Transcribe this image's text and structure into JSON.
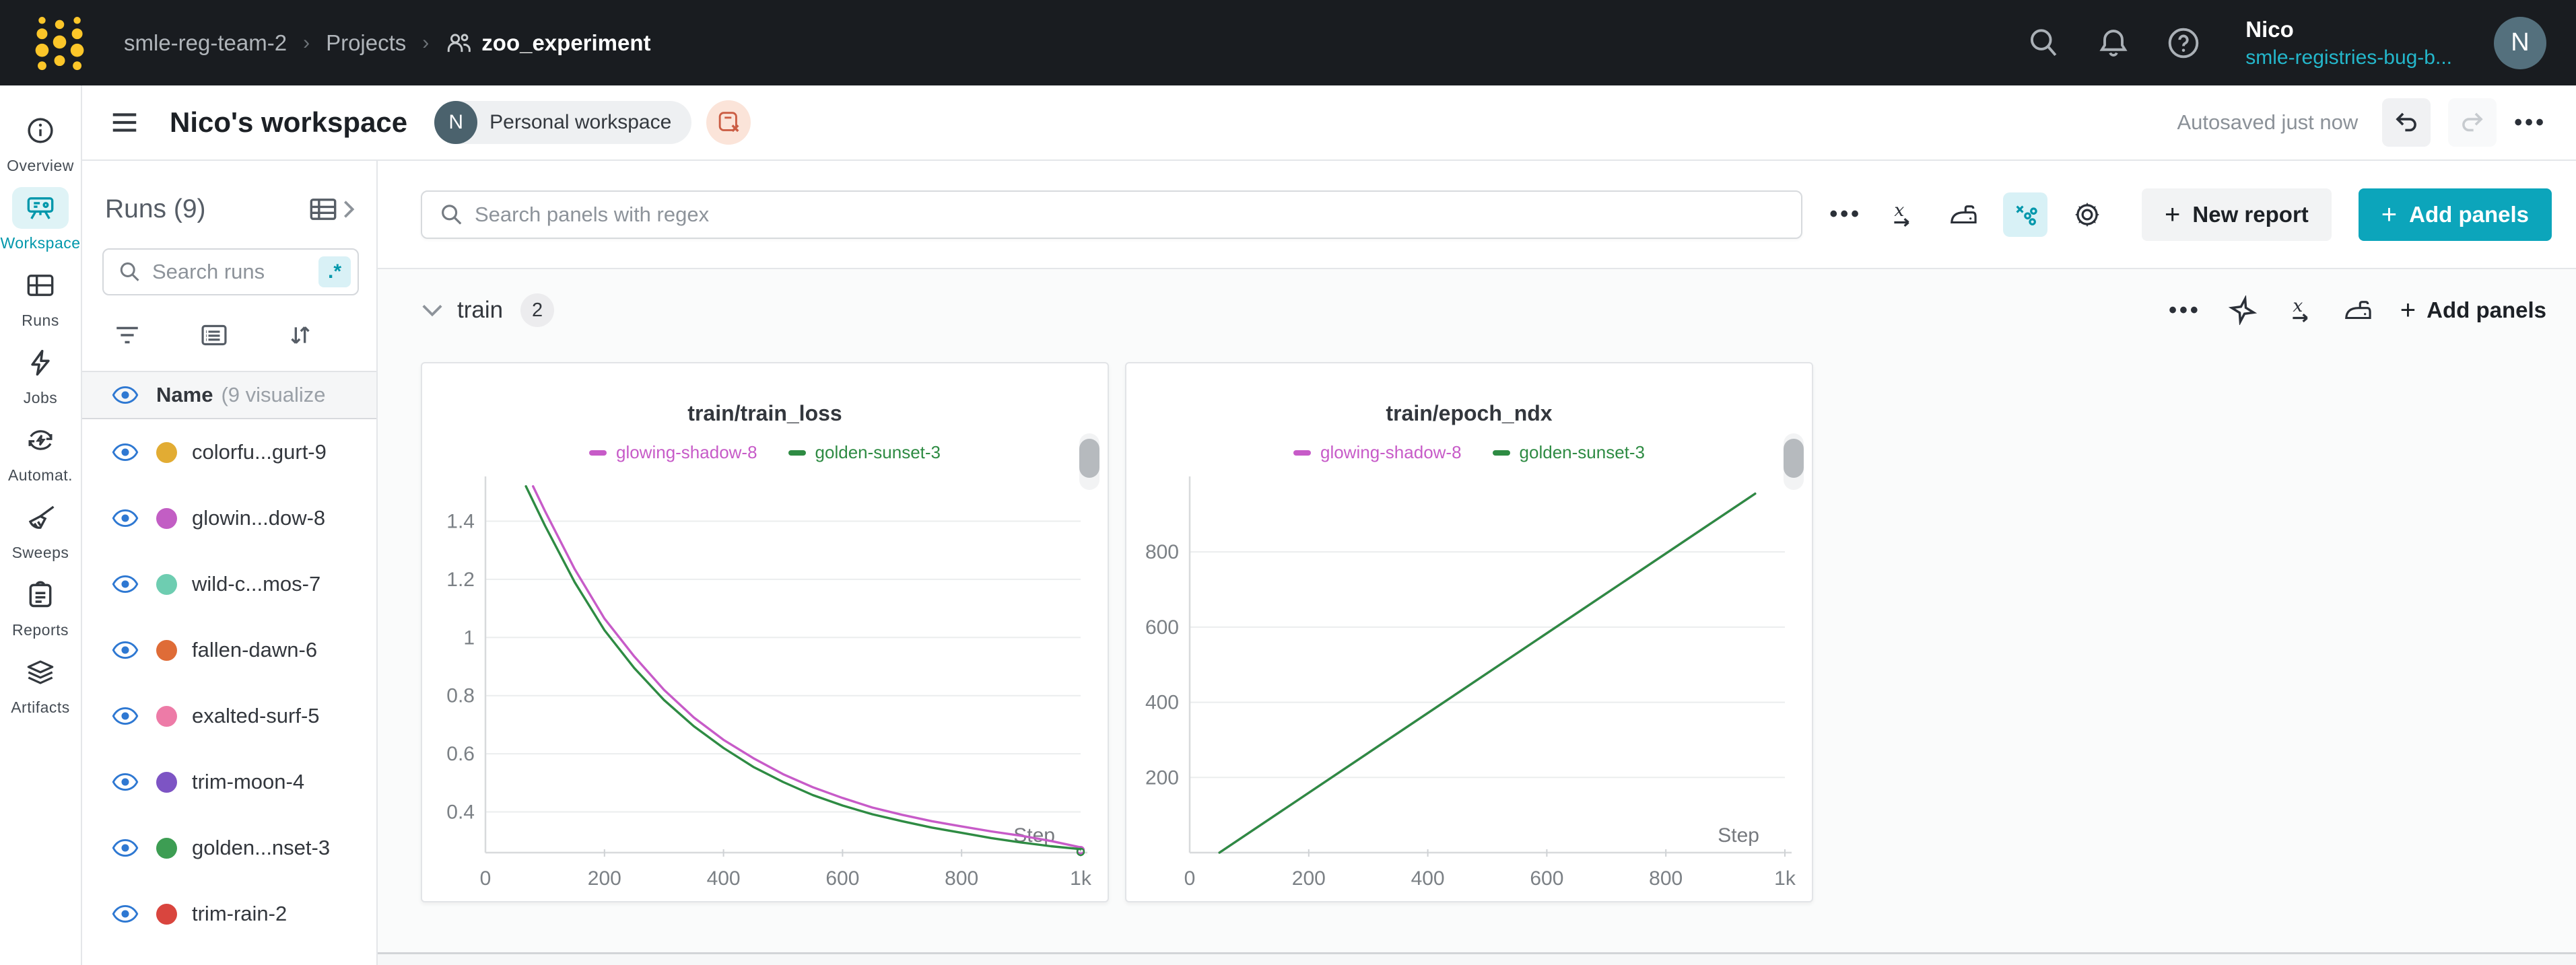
{
  "navbar": {
    "breadcrumb": {
      "team": "smle-reg-team-2",
      "section": "Projects",
      "separator": "›",
      "project": "zoo_experiment"
    },
    "user": {
      "name": "Nico",
      "org": "smle-registries-bug-b...",
      "avatar_initial": "N"
    }
  },
  "header": {
    "title": "Nico's workspace",
    "badge": {
      "initial": "N",
      "label": "Personal workspace"
    },
    "autosave_status": "Autosaved just now",
    "more_label": "•••"
  },
  "sidebar": {
    "items": [
      {
        "label": "Overview",
        "icon": "info-icon",
        "active": false
      },
      {
        "label": "Workspace",
        "icon": "workspace-icon",
        "active": true
      },
      {
        "label": "Runs",
        "icon": "runs-table-icon",
        "active": false
      },
      {
        "label": "Jobs",
        "icon": "lightning-icon",
        "active": false
      },
      {
        "label": "Automat.",
        "icon": "automations-icon",
        "active": false
      },
      {
        "label": "Sweeps",
        "icon": "broom-icon",
        "active": false
      },
      {
        "label": "Reports",
        "icon": "clipboard-icon",
        "active": false
      },
      {
        "label": "Artifacts",
        "icon": "layers-icon",
        "active": false
      }
    ]
  },
  "runs_panel": {
    "title": "Runs (9)",
    "search_placeholder": "Search runs",
    "regex_label": ".*",
    "list_header": {
      "name": "Name",
      "suffix": "(9 visualize"
    },
    "runs": [
      {
        "name": "colorfu...gurt-9",
        "color": "#E2AC33"
      },
      {
        "name": "glowin...dow-8",
        "color": "#C25EC4"
      },
      {
        "name": "wild-c...mos-7",
        "color": "#6ECDB1"
      },
      {
        "name": "fallen-dawn-6",
        "color": "#DF6C37"
      },
      {
        "name": "exalted-surf-5",
        "color": "#ED7BA7"
      },
      {
        "name": "trim-moon-4",
        "color": "#7D54C4"
      },
      {
        "name": "golden...nset-3",
        "color": "#3D9D53"
      },
      {
        "name": "trim-rain-2",
        "color": "#D9453E"
      }
    ]
  },
  "panels_toolbar": {
    "search_placeholder": "Search panels with regex",
    "more_label": "•••",
    "new_report_label": "New report",
    "add_panels_label": "Add panels"
  },
  "train_section": {
    "title": "train",
    "count": "2",
    "more_label": "•••",
    "add_panels_label": "Add panels"
  },
  "colors": {
    "accent_teal": "#0ca5bb",
    "teal_text": "#0097ab",
    "navbar_bg": "#191c20",
    "logo_gold": "#fcc629"
  },
  "chart_data": [
    {
      "type": "line",
      "title": "train/train_loss",
      "xlabel": "Step",
      "ylabel": "",
      "xlim": [
        0,
        1000
      ],
      "ylim": [
        0.26,
        1.54
      ],
      "grid": "horizontal",
      "legend_position": "top",
      "x_ticks": [
        {
          "v": 0,
          "label": "0"
        },
        {
          "v": 200,
          "label": "200"
        },
        {
          "v": 400,
          "label": "400"
        },
        {
          "v": 600,
          "label": "600"
        },
        {
          "v": 800,
          "label": "800"
        },
        {
          "v": 1000,
          "label": "1k"
        }
      ],
      "y_ticks": [
        {
          "v": 0.4,
          "label": "0.4"
        },
        {
          "v": 0.6,
          "label": "0.6"
        },
        {
          "v": 0.8,
          "label": "0.8"
        },
        {
          "v": 1,
          "label": "1"
        },
        {
          "v": 1.2,
          "label": "1.2"
        },
        {
          "v": 1.4,
          "label": "1.4"
        }
      ],
      "end_markers": true,
      "series": [
        {
          "name": "glowing-shadow-8",
          "color": "#C75BC8",
          "points": [
            [
              80,
              1.52
            ],
            [
              100,
              1.435
            ],
            [
              150,
              1.235
            ],
            [
              200,
              1.065
            ],
            [
              250,
              0.935
            ],
            [
              300,
              0.82
            ],
            [
              350,
              0.725
            ],
            [
              400,
              0.648
            ],
            [
              450,
              0.585
            ],
            [
              500,
              0.53
            ],
            [
              550,
              0.485
            ],
            [
              600,
              0.448
            ],
            [
              650,
              0.415
            ],
            [
              700,
              0.39
            ],
            [
              750,
              0.368
            ],
            [
              800,
              0.35
            ],
            [
              850,
              0.333
            ],
            [
              900,
              0.318
            ],
            [
              950,
              0.3
            ],
            [
              1000,
              0.278
            ]
          ]
        },
        {
          "name": "golden-sunset-3",
          "color": "#2E8B43",
          "points": [
            [
              68,
              1.52
            ],
            [
              100,
              1.385
            ],
            [
              150,
              1.19
            ],
            [
              200,
              1.025
            ],
            [
              250,
              0.895
            ],
            [
              300,
              0.785
            ],
            [
              350,
              0.695
            ],
            [
              400,
              0.62
            ],
            [
              450,
              0.555
            ],
            [
              500,
              0.503
            ],
            [
              550,
              0.458
            ],
            [
              600,
              0.422
            ],
            [
              650,
              0.392
            ],
            [
              700,
              0.368
            ],
            [
              750,
              0.346
            ],
            [
              800,
              0.328
            ],
            [
              850,
              0.31
            ],
            [
              900,
              0.295
            ],
            [
              950,
              0.282
            ],
            [
              1000,
              0.272
            ]
          ]
        }
      ]
    },
    {
      "type": "line",
      "title": "train/epoch_ndx",
      "xlabel": "Step",
      "ylabel": "",
      "xlim": [
        0,
        1000
      ],
      "ylim": [
        0,
        990
      ],
      "grid": "horizontal",
      "legend_position": "top",
      "x_ticks": [
        {
          "v": 0,
          "label": "0"
        },
        {
          "v": 200,
          "label": "200"
        },
        {
          "v": 400,
          "label": "400"
        },
        {
          "v": 600,
          "label": "600"
        },
        {
          "v": 800,
          "label": "800"
        },
        {
          "v": 1000,
          "label": "1k"
        }
      ],
      "y_ticks": [
        {
          "v": 200,
          "label": "200"
        },
        {
          "v": 400,
          "label": "400"
        },
        {
          "v": 600,
          "label": "600"
        },
        {
          "v": 800,
          "label": "800"
        }
      ],
      "end_markers": false,
      "series": [
        {
          "name": "glowing-shadow-8",
          "color": "#C75BC8",
          "points": [
            [
              50,
              0
            ],
            [
              950,
              955
            ]
          ]
        },
        {
          "name": "golden-sunset-3",
          "color": "#2E8B43",
          "points": [
            [
              50,
              0
            ],
            [
              950,
              955
            ]
          ]
        }
      ]
    }
  ]
}
